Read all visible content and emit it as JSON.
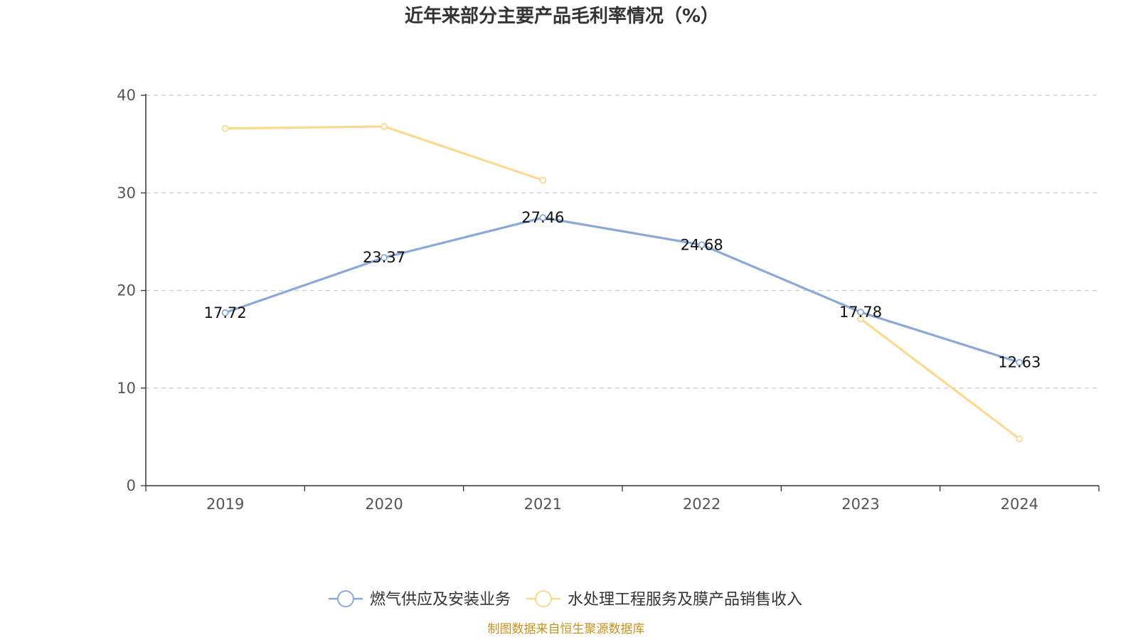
{
  "chart_data": {
    "type": "line",
    "title": "近年来部分主要产品毛利率情况（%）",
    "xlabel": "",
    "ylabel": "",
    "categories": [
      "2019",
      "2020",
      "2021",
      "2022",
      "2023",
      "2024"
    ],
    "ylim": [
      0,
      40
    ],
    "yticks": [
      0,
      10,
      20,
      30,
      40
    ],
    "grid": true,
    "legend_position": "bottom",
    "series": [
      {
        "name": "燃气供应及安装业务",
        "color": "#8aa9d8",
        "values": [
          17.72,
          23.37,
          27.46,
          24.68,
          17.78,
          12.63
        ],
        "labels": [
          "17.72",
          "23.37",
          "27.46",
          "24.68",
          "17.78",
          "12.63"
        ]
      },
      {
        "name": "水处理工程服务及膜产品销售收入",
        "color": "#fbd98f",
        "values": [
          36.6,
          36.8,
          31.3,
          null,
          17.1,
          4.8
        ],
        "labels": []
      }
    ],
    "source": "制图数据来自恒生聚源数据库"
  }
}
